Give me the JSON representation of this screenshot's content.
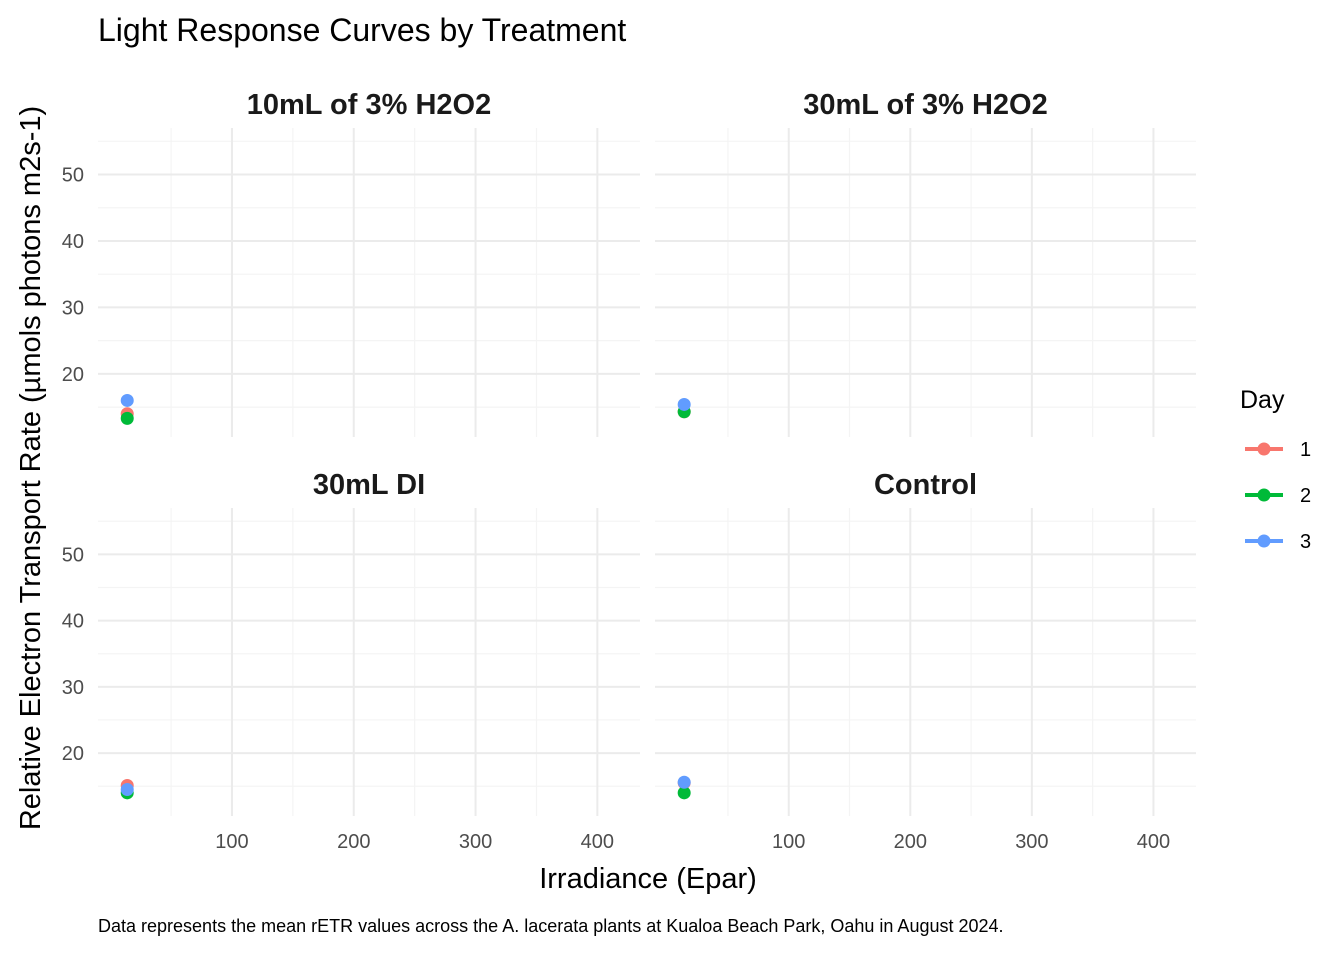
{
  "chart_data": {
    "type": "scatter",
    "title": "Light Response Curves by Treatment",
    "xlabel": "Irradiance (Epar)",
    "ylabel": "Relative Electron Transport Rate (µmols photons m2s-1)",
    "caption": "Data represents the mean rETR values across the A. lacerata plants at Kualoa Beach Park, Oahu in August 2024.",
    "xlim": [
      -10,
      435
    ],
    "ylim": [
      10.5,
      57
    ],
    "x_ticks": [
      100,
      200,
      300,
      400
    ],
    "y_ticks": [
      20,
      30,
      40,
      50
    ],
    "grid": true,
    "legend": {
      "title": "Day",
      "position": "right",
      "entries": [
        {
          "label": "1",
          "color": "#F8766D"
        },
        {
          "label": "2",
          "color": "#00BA38"
        },
        {
          "label": "3",
          "color": "#619CFF"
        }
      ]
    },
    "panels": [
      {
        "title": "10mL of 3% H2O2",
        "series": [
          {
            "name": "1",
            "color": "#F8766D",
            "points": [
              {
                "x": 14,
                "y": 14.0
              }
            ]
          },
          {
            "name": "2",
            "color": "#00BA38",
            "points": [
              {
                "x": 14,
                "y": 13.3
              }
            ]
          },
          {
            "name": "3",
            "color": "#619CFF",
            "points": [
              {
                "x": 14,
                "y": 16.0
              }
            ]
          }
        ]
      },
      {
        "title": "30mL of 3% H2O2",
        "series": [
          {
            "name": "1",
            "color": "#F8766D",
            "points": [
              {
                "x": 14,
                "y": 14.3
              }
            ]
          },
          {
            "name": "2",
            "color": "#00BA38",
            "points": [
              {
                "x": 14,
                "y": 14.3
              }
            ]
          },
          {
            "name": "3",
            "color": "#619CFF",
            "points": [
              {
                "x": 14,
                "y": 15.4
              }
            ]
          }
        ]
      },
      {
        "title": "30mL DI",
        "series": [
          {
            "name": "1",
            "color": "#F8766D",
            "points": [
              {
                "x": 14,
                "y": 15.1
              }
            ]
          },
          {
            "name": "2",
            "color": "#00BA38",
            "points": [
              {
                "x": 14,
                "y": 14.0
              }
            ]
          },
          {
            "name": "3",
            "color": "#619CFF",
            "points": [
              {
                "x": 14,
                "y": 14.5
              }
            ]
          }
        ]
      },
      {
        "title": "Control",
        "series": [
          {
            "name": "1",
            "color": "#F8766D",
            "points": [
              {
                "x": 14,
                "y": 15.5
              }
            ]
          },
          {
            "name": "2",
            "color": "#00BA38",
            "points": [
              {
                "x": 14,
                "y": 14.0
              }
            ]
          },
          {
            "name": "3",
            "color": "#619CFF",
            "points": [
              {
                "x": 14,
                "y": 15.6
              }
            ]
          }
        ]
      }
    ]
  }
}
